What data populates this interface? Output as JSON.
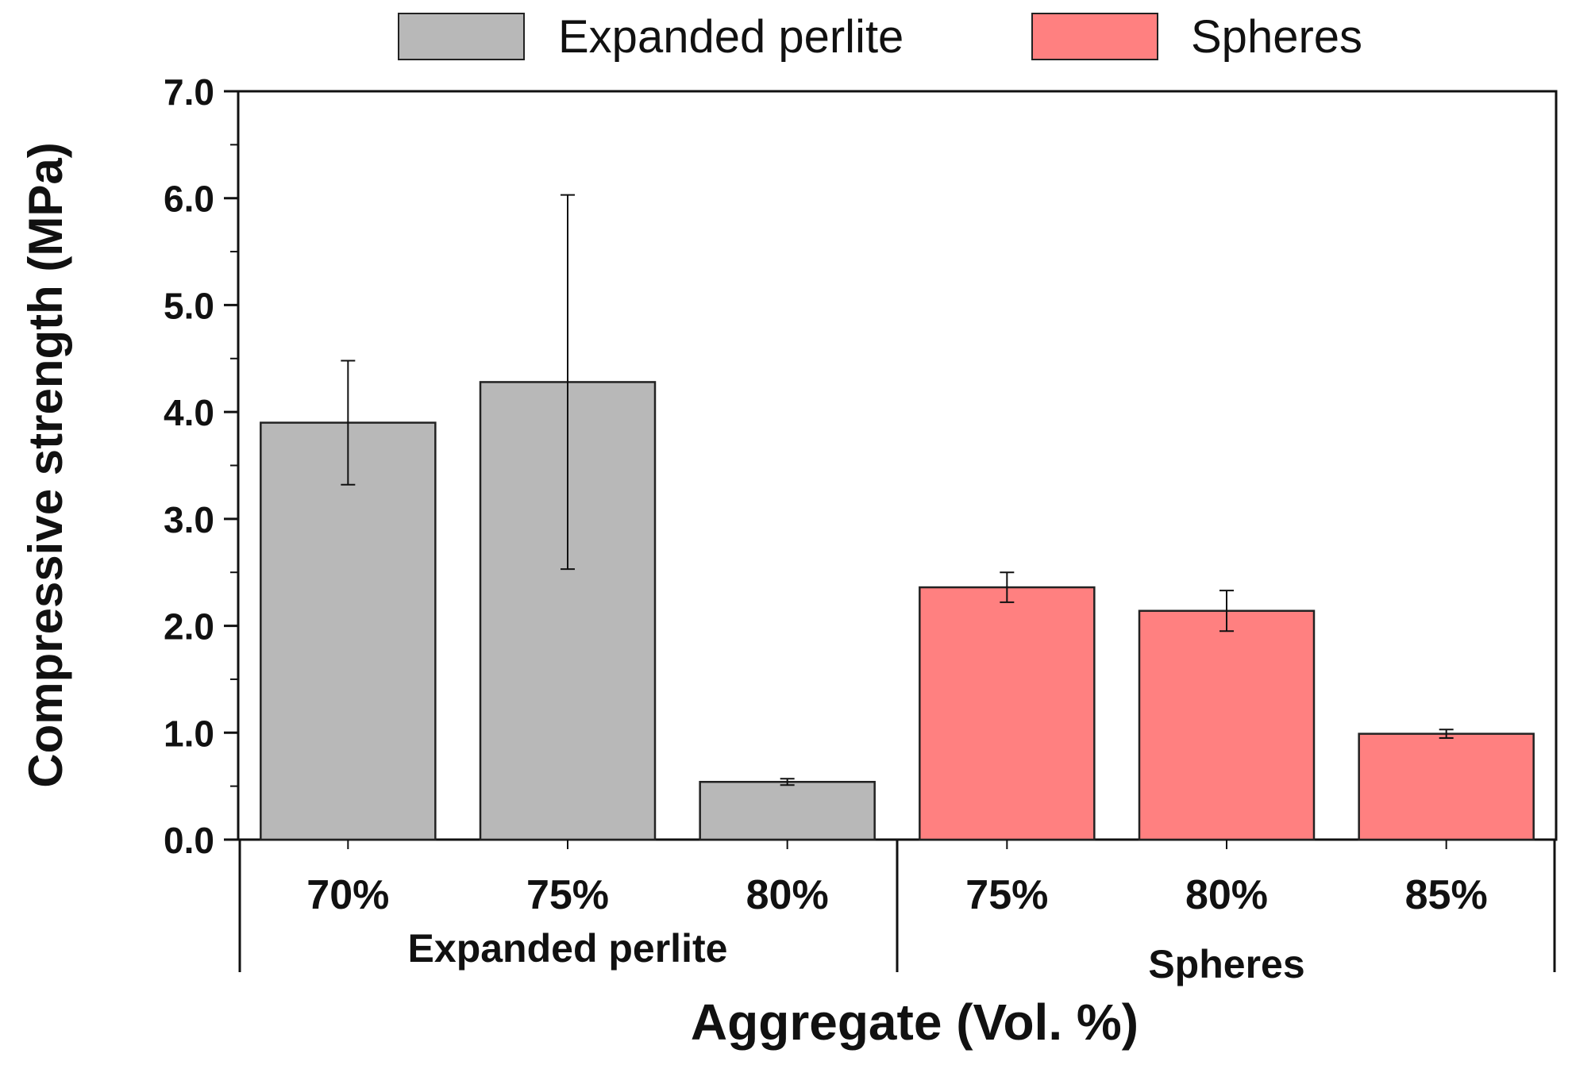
{
  "chart_data": {
    "type": "bar",
    "title": "",
    "xlabel": "Aggregate (Vol. %)",
    "ylabel": "Compressive strength (MPa)",
    "ylim": [
      0,
      7
    ],
    "y_ticks": [
      "0.0",
      "1.0",
      "2.0",
      "3.0",
      "4.0",
      "5.0",
      "6.0",
      "7.0"
    ],
    "legend_position": "top",
    "groups": [
      {
        "label": "Expanded perlite",
        "color": "#b8b8b8"
      },
      {
        "label": "Spheres",
        "color": "#ff8080"
      }
    ],
    "categories": [
      "70%",
      "75%",
      "80%",
      "75%",
      "80%",
      "85%"
    ],
    "bar_groups": [
      0,
      0,
      0,
      1,
      1,
      1
    ],
    "values": [
      3.9,
      4.28,
      0.54,
      2.36,
      2.14,
      0.99
    ],
    "error": [
      0.58,
      1.75,
      0.03,
      0.14,
      0.19,
      0.04
    ],
    "series": [
      {
        "name": "Expanded perlite",
        "color": "#b8b8b8"
      },
      {
        "name": "Spheres",
        "color": "#ff8080"
      }
    ]
  }
}
